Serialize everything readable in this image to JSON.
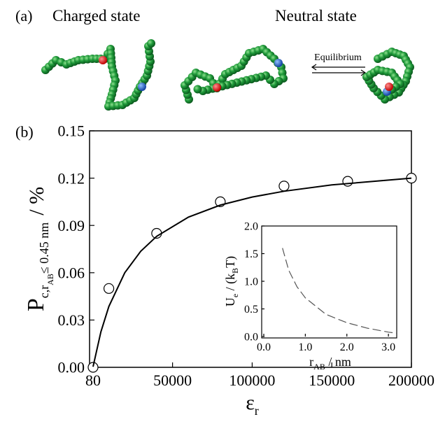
{
  "panel_a": {
    "label": "(a)",
    "charged": "Charged state",
    "neutral": "Neutral state",
    "arrow": "Equilibrium"
  },
  "panel_b": {
    "label": "(b)"
  },
  "chart_data": [
    {
      "type": "scatter",
      "xlabel": {
        "main": "ε",
        "sub": "r"
      },
      "ylabel": {
        "main": "P",
        "sub": "c,r",
        "subsub": "AB",
        "sub2": "≤ 0.45 nm",
        "unit": "/ %"
      },
      "xlim": [
        80,
        200000
      ],
      "xticks": [
        80,
        50000,
        100000,
        150000,
        200000
      ],
      "ylim": [
        0,
        0.15
      ],
      "yticks": [
        {
          "value": 0,
          "label": "0.00"
        },
        0.03,
        0.06,
        0.09,
        0.12,
        0.15
      ],
      "series": [
        {
          "type": "scatter",
          "color": "#000000",
          "x": [
            80,
            10000,
            40000,
            80000,
            120000,
            160000,
            200000
          ],
          "values": [
            0.0,
            0.05,
            0.085,
            0.105,
            0.115,
            0.118,
            0.12
          ]
        },
        {
          "type": "line",
          "color": "#000000",
          "x": [
            80,
            5000,
            10000,
            20000,
            30000,
            40000,
            60000,
            80000,
            100000,
            120000,
            150000,
            200000
          ],
          "values": [
            0.0004,
            0.0225,
            0.0386,
            0.06,
            0.0736,
            0.0831,
            0.0953,
            0.1029,
            0.108,
            0.1117,
            0.1157,
            0.12
          ]
        }
      ]
    },
    {
      "type": "line",
      "xlabel": {
        "main": "r",
        "sub": "AB",
        "unit": " / nm"
      },
      "ylabel": {
        "main": "U",
        "sub": "e",
        "unit": " / (k",
        "sub2": "B",
        "unit2": "T)"
      },
      "xlim": [
        0,
        3.2
      ],
      "xticks": [
        {
          "value": 0,
          "label": "0.0"
        },
        {
          "value": 1,
          "label": "1.0"
        },
        {
          "value": 2,
          "label": "2.0"
        },
        {
          "value": 3,
          "label": "3.0"
        }
      ],
      "ylim": [
        0,
        2.0
      ],
      "yticks": [
        {
          "value": 0,
          "label": "0.0"
        },
        0.5,
        {
          "value": 1,
          "label": "1.0"
        },
        1.5,
        {
          "value": 2,
          "label": "2.0"
        }
      ],
      "series": [
        {
          "type": "line",
          "color": "#555555",
          "dashed": true,
          "x": [
            0.45,
            0.6,
            0.8,
            1.0,
            1.5,
            2.0,
            2.5,
            3.0,
            3.2
          ],
          "values": [
            1.6,
            1.2,
            0.9,
            0.7,
            0.4,
            0.25,
            0.15,
            0.08,
            0.06
          ]
        }
      ]
    }
  ]
}
